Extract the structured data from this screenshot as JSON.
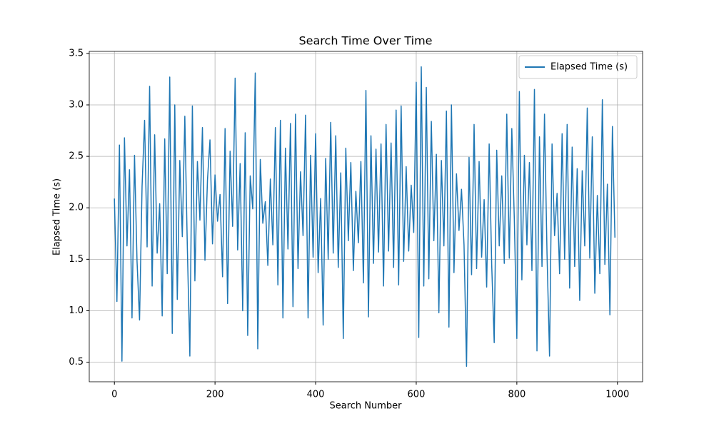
{
  "chart_data": {
    "type": "line",
    "title": "Search Time Over Time",
    "xlabel": "Search Number",
    "ylabel": "Elapsed Time (s)",
    "x": [
      0,
      5,
      10,
      15,
      20,
      25,
      30,
      35,
      40,
      45,
      50,
      55,
      60,
      65,
      70,
      75,
      80,
      85,
      90,
      95,
      100,
      105,
      110,
      115,
      120,
      125,
      130,
      135,
      140,
      145,
      150,
      155,
      160,
      165,
      170,
      175,
      180,
      185,
      190,
      195,
      200,
      205,
      210,
      215,
      220,
      225,
      230,
      235,
      240,
      245,
      250,
      255,
      260,
      265,
      270,
      275,
      280,
      285,
      290,
      295,
      300,
      305,
      310,
      315,
      320,
      325,
      330,
      335,
      340,
      345,
      350,
      355,
      360,
      365,
      370,
      375,
      380,
      385,
      390,
      395,
      400,
      405,
      410,
      415,
      420,
      425,
      430,
      435,
      440,
      445,
      450,
      455,
      460,
      465,
      470,
      475,
      480,
      485,
      490,
      495,
      500,
      505,
      510,
      515,
      520,
      525,
      530,
      535,
      540,
      545,
      550,
      555,
      560,
      565,
      570,
      575,
      580,
      585,
      590,
      595,
      600,
      605,
      610,
      615,
      620,
      625,
      630,
      635,
      640,
      645,
      650,
      655,
      660,
      665,
      670,
      675,
      680,
      685,
      690,
      695,
      700,
      705,
      710,
      715,
      720,
      725,
      730,
      735,
      740,
      745,
      750,
      755,
      760,
      765,
      770,
      775,
      780,
      785,
      790,
      795,
      800,
      805,
      810,
      815,
      820,
      825,
      830,
      835,
      840,
      845,
      850,
      855,
      860,
      865,
      870,
      875,
      880,
      885,
      890,
      895,
      900,
      905,
      910,
      915,
      920,
      925,
      930,
      935,
      940,
      945,
      950,
      955,
      960,
      965,
      970,
      975,
      980,
      985,
      990,
      995
    ],
    "series": [
      {
        "name": "Elapsed Time (s)",
        "color": "#1f77b4",
        "values": [
          2.09,
          1.09,
          2.61,
          0.51,
          2.68,
          1.63,
          2.37,
          0.93,
          2.51,
          1.48,
          0.91,
          2.21,
          2.85,
          1.62,
          3.18,
          1.24,
          2.71,
          1.56,
          2.04,
          0.95,
          2.67,
          1.36,
          3.27,
          0.78,
          3.0,
          1.11,
          2.46,
          1.72,
          2.89,
          1.61,
          0.56,
          2.99,
          1.29,
          2.45,
          1.88,
          2.78,
          1.49,
          2.27,
          2.66,
          1.65,
          2.32,
          1.87,
          2.13,
          1.33,
          2.77,
          1.07,
          2.55,
          1.82,
          3.26,
          1.59,
          2.43,
          1.0,
          2.73,
          0.76,
          2.31,
          1.99,
          3.31,
          0.63,
          2.47,
          1.85,
          2.06,
          1.44,
          2.28,
          1.64,
          2.78,
          1.25,
          2.85,
          0.93,
          2.58,
          1.6,
          2.82,
          1.04,
          2.91,
          1.41,
          2.35,
          1.73,
          2.9,
          0.93,
          2.51,
          1.52,
          2.72,
          1.37,
          2.09,
          0.86,
          2.48,
          1.5,
          2.83,
          1.56,
          2.7,
          1.42,
          2.34,
          0.73,
          2.58,
          1.68,
          2.44,
          1.39,
          2.16,
          1.66,
          2.45,
          1.27,
          3.14,
          0.94,
          2.7,
          1.46,
          2.57,
          1.57,
          2.62,
          1.24,
          2.81,
          1.58,
          2.63,
          1.42,
          2.95,
          1.25,
          2.99,
          1.48,
          2.4,
          1.58,
          2.22,
          1.76,
          3.22,
          0.74,
          3.37,
          1.24,
          3.17,
          1.31,
          2.84,
          1.68,
          2.52,
          0.98,
          2.46,
          1.63,
          2.94,
          0.84,
          3.0,
          1.37,
          2.33,
          1.78,
          2.18,
          1.64,
          0.46,
          2.49,
          1.35,
          2.81,
          1.41,
          2.45,
          1.52,
          2.08,
          1.23,
          2.62,
          1.45,
          0.69,
          2.56,
          1.63,
          2.31,
          1.46,
          2.91,
          1.51,
          2.77,
          1.89,
          0.73,
          3.13,
          1.3,
          2.51,
          1.64,
          2.44,
          1.39,
          3.15,
          0.61,
          2.69,
          1.43,
          2.91,
          1.55,
          0.56,
          2.62,
          1.73,
          2.14,
          1.36,
          2.72,
          1.5,
          2.81,
          1.22,
          2.59,
          1.43,
          2.38,
          1.1,
          2.36,
          1.63,
          2.97,
          1.51,
          2.69,
          1.17,
          2.12,
          1.36,
          3.05,
          1.45,
          2.23,
          0.96,
          2.79,
          1.71
        ]
      }
    ],
    "xlim": [
      -50,
      1050
    ],
    "xticks": [
      0,
      200,
      400,
      600,
      800,
      1000
    ],
    "ylim": [
      0.31,
      3.52
    ],
    "yticks": [
      0.5,
      {
        "value": 1.0,
        "label": "1.0"
      },
      1.5,
      {
        "value": 2.0,
        "label": "2.0"
      },
      2.5,
      {
        "value": 3.0,
        "label": "3.0"
      },
      3.5
    ],
    "grid": true,
    "legend": "upper right"
  }
}
